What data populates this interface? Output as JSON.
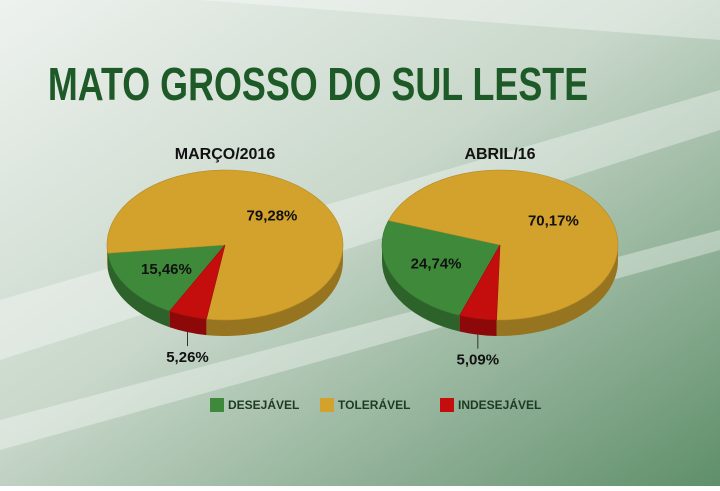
{
  "title": "MATO GROSSO DO SUL LESTE",
  "chart_data": [
    {
      "type": "pie",
      "title": "MARÇO/2016",
      "categories": [
        "DESEJÁVEL",
        "TOLERÁVEL",
        "INDESEJÁVEL"
      ],
      "values": [
        15.46,
        79.28,
        5.26
      ],
      "value_labels": [
        "15,46%",
        "79,28%",
        "5,26%"
      ],
      "colors": [
        "#3f8a3a",
        "#d2a22c",
        "#c40d0d"
      ]
    },
    {
      "type": "pie",
      "title": "ABRIL/16",
      "categories": [
        "DESEJÁVEL",
        "TOLERÁVEL",
        "INDESEJÁVEL"
      ],
      "values": [
        24.74,
        70.17,
        5.09
      ],
      "value_labels": [
        "24,74%",
        "70,17%",
        "5,09%"
      ],
      "colors": [
        "#3f8a3a",
        "#d2a22c",
        "#c40d0d"
      ]
    }
  ]
}
